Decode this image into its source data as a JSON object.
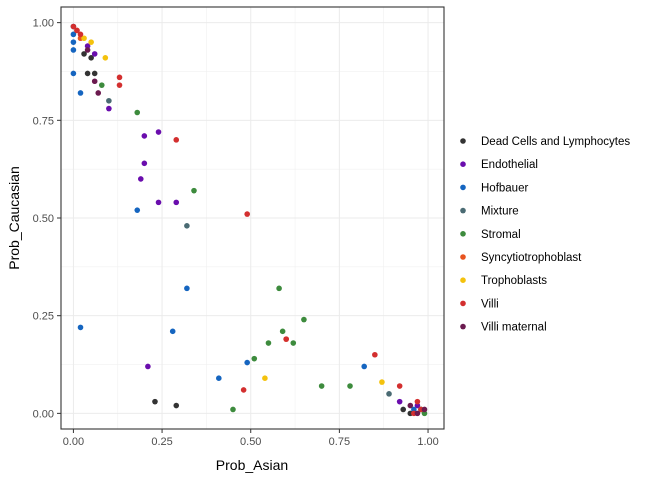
{
  "chart_data": {
    "type": "scatter",
    "xlabel": "Prob_Asian",
    "ylabel": "Prob_Caucasian",
    "xlim": [
      -0.035,
      1.045
    ],
    "ylim": [
      -0.04,
      1.04
    ],
    "x_ticks": [
      0.0,
      0.25,
      0.5,
      0.75,
      1.0
    ],
    "y_ticks": [
      0.0,
      0.25,
      0.5,
      0.75,
      1.0
    ],
    "x_tick_labels": [
      "0.00",
      "0.25",
      "0.50",
      "0.75",
      "1.00"
    ],
    "y_tick_labels": [
      "0.00",
      "0.25",
      "0.50",
      "0.75",
      "1.00"
    ],
    "grid": true,
    "legend_position": "right",
    "series": [
      {
        "name": "Dead Cells and Lymphocytes",
        "color": "#333333",
        "points": [
          [
            0.04,
            0.87
          ],
          [
            0.06,
            0.87
          ],
          [
            0.23,
            0.03
          ],
          [
            0.29,
            0.02
          ],
          [
            0.93,
            0.01
          ],
          [
            0.95,
            0.0
          ],
          [
            0.03,
            0.92
          ],
          [
            0.05,
            0.91
          ]
        ]
      },
      {
        "name": "Endothelial",
        "color": "#6a0dad",
        "points": [
          [
            0.1,
            0.78
          ],
          [
            0.2,
            0.71
          ],
          [
            0.24,
            0.72
          ],
          [
            0.2,
            0.64
          ],
          [
            0.19,
            0.6
          ],
          [
            0.24,
            0.54
          ],
          [
            0.29,
            0.54
          ],
          [
            0.21,
            0.12
          ],
          [
            0.92,
            0.03
          ],
          [
            0.97,
            0.02
          ],
          [
            0.04,
            0.94
          ],
          [
            0.06,
            0.92
          ]
        ]
      },
      {
        "name": "Hofbauer",
        "color": "#1565c0",
        "points": [
          [
            0.0,
            0.99
          ],
          [
            0.0,
            0.97
          ],
          [
            0.0,
            0.95
          ],
          [
            0.0,
            0.93
          ],
          [
            0.0,
            0.87
          ],
          [
            0.02,
            0.82
          ],
          [
            0.18,
            0.52
          ],
          [
            0.32,
            0.32
          ],
          [
            0.02,
            0.22
          ],
          [
            0.28,
            0.21
          ],
          [
            0.49,
            0.13
          ],
          [
            0.41,
            0.09
          ],
          [
            0.82,
            0.12
          ],
          [
            0.96,
            0.01
          ]
        ]
      },
      {
        "name": "Mixture",
        "color": "#4a6b73",
        "points": [
          [
            0.1,
            0.8
          ],
          [
            0.32,
            0.48
          ],
          [
            0.89,
            0.05
          ],
          [
            0.98,
            0.01
          ]
        ]
      },
      {
        "name": "Stromal",
        "color": "#3d8b3d",
        "points": [
          [
            0.18,
            0.77
          ],
          [
            0.34,
            0.57
          ],
          [
            0.08,
            0.84
          ],
          [
            0.58,
            0.32
          ],
          [
            0.65,
            0.24
          ],
          [
            0.59,
            0.21
          ],
          [
            0.62,
            0.18
          ],
          [
            0.55,
            0.18
          ],
          [
            0.51,
            0.14
          ],
          [
            0.7,
            0.07
          ],
          [
            0.78,
            0.07
          ],
          [
            0.45,
            0.01
          ],
          [
            0.99,
            0.0
          ],
          [
            0.98,
            0.01
          ]
        ]
      },
      {
        "name": "Syncytiotrophoblast",
        "color": "#e8531f",
        "points": [
          [
            0.6,
            0.19
          ],
          [
            0.01,
            0.98
          ],
          [
            0.02,
            0.96
          ]
        ]
      },
      {
        "name": "Trophoblasts",
        "color": "#f4c20d",
        "points": [
          [
            0.03,
            0.96
          ],
          [
            0.05,
            0.95
          ],
          [
            0.09,
            0.91
          ],
          [
            0.54,
            0.09
          ],
          [
            0.87,
            0.08
          ]
        ]
      },
      {
        "name": "Villi",
        "color": "#d32f2f",
        "points": [
          [
            0.0,
            0.99
          ],
          [
            0.01,
            0.98
          ],
          [
            0.02,
            0.97
          ],
          [
            0.13,
            0.86
          ],
          [
            0.13,
            0.84
          ],
          [
            0.29,
            0.7
          ],
          [
            0.49,
            0.51
          ],
          [
            0.6,
            0.19
          ],
          [
            0.85,
            0.15
          ],
          [
            0.48,
            0.06
          ],
          [
            0.92,
            0.07
          ],
          [
            0.97,
            0.03
          ],
          [
            0.98,
            0.01
          ],
          [
            0.96,
            0.0
          ]
        ]
      },
      {
        "name": "Villi maternal",
        "color": "#6b1a4f",
        "points": [
          [
            0.04,
            0.93
          ],
          [
            0.07,
            0.82
          ],
          [
            0.06,
            0.85
          ],
          [
            0.95,
            0.02
          ],
          [
            0.97,
            0.0
          ],
          [
            0.99,
            0.01
          ]
        ]
      }
    ]
  }
}
